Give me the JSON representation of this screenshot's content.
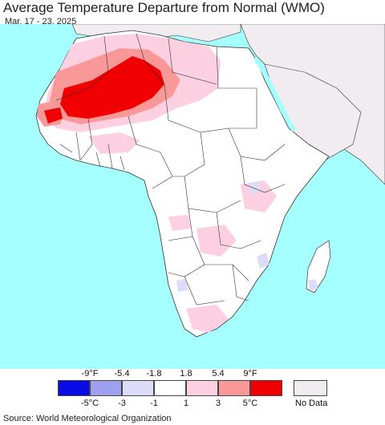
{
  "title": "Average Temperature Departure from Normal (WMO)",
  "date_range": "Mar. 17 - 23, 2025",
  "legend": {
    "fahrenheit_labels": [
      "-9°F",
      "-5.4",
      "-1.8",
      "1.8",
      "5.4",
      "9°F"
    ],
    "celsius_labels": [
      "-5°C",
      "-3",
      "-1",
      "1",
      "3",
      "5°C"
    ],
    "colors": [
      "#0a0ae6",
      "#a0a0f0",
      "#dcdcf8",
      "#ffffff",
      "#fcd0e0",
      "#f89898",
      "#f00000"
    ],
    "no_data_label": "No Data",
    "no_data_color": "#f0ecf0"
  },
  "map_colors": {
    "ocean": "#a6ffff",
    "land_default": "#ffffff",
    "no_data": "#f0ecf0",
    "warm_light": "#fcd0e0",
    "warm_mid": "#f89898",
    "warm_strong": "#f00000",
    "cool_light": "#dcdcf8"
  },
  "source": "Source: World Meteorological Organization"
}
